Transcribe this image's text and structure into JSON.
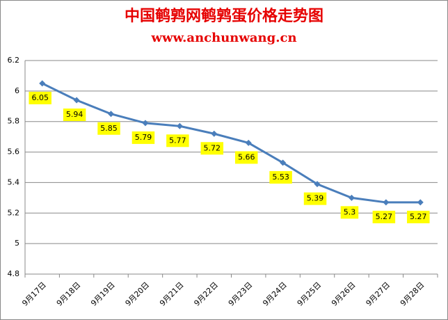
{
  "chart_data": {
    "type": "line",
    "title": "中国鹌鹑网鹌鹑蛋价格走势图",
    "subtitle": "www.anchunwang.cn",
    "categories": [
      "9月17日",
      "9月18日",
      "9月19日",
      "9月20日",
      "9月21日",
      "9月22日",
      "9月23日",
      "9月24日",
      "9月25日",
      "9月26日",
      "9月27日",
      "9月28日"
    ],
    "values": [
      6.05,
      5.94,
      5.85,
      5.79,
      5.77,
      5.72,
      5.66,
      5.53,
      5.39,
      5.3,
      5.27,
      5.27
    ],
    "color": "#4a7ebb",
    "label_color": "#ffff00",
    "ylim": [
      4.8,
      6.2
    ],
    "yticks": [
      4.8,
      5,
      5.2,
      5.4,
      5.6,
      5.8,
      6,
      6.2
    ],
    "grid": true
  }
}
